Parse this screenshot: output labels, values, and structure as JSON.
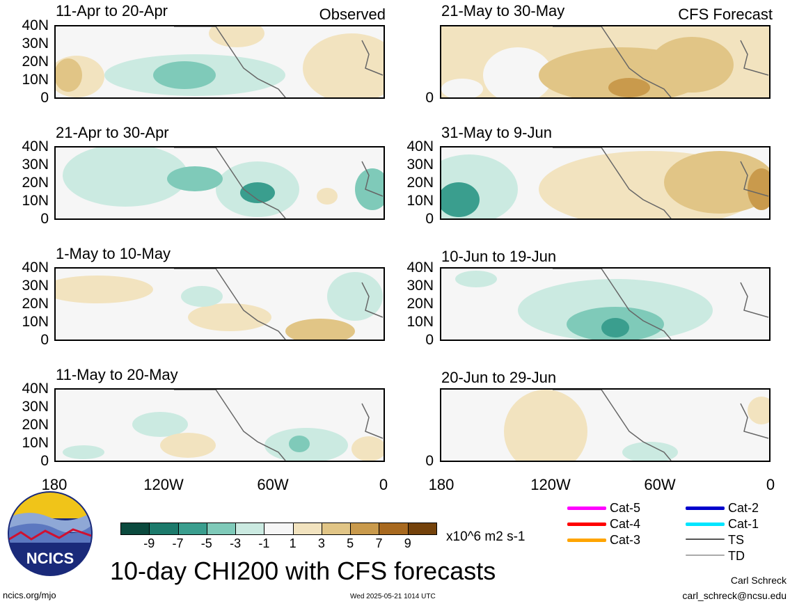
{
  "header": {
    "observed_tag": "Observed",
    "forecast_tag": "CFS Forecast"
  },
  "panels_left": [
    {
      "title": "11-Apr to 20-Apr"
    },
    {
      "title": "21-Apr to 30-Apr"
    },
    {
      "title": "1-May to 10-May"
    },
    {
      "title": "11-May to 20-May"
    }
  ],
  "panels_right": [
    {
      "title": "21-May to 30-May"
    },
    {
      "title": "31-May to 9-Jun"
    },
    {
      "title": "10-Jun to 19-Jun"
    },
    {
      "title": "20-Jun to 29-Jun"
    }
  ],
  "y_axis": [
    "40N",
    "30N",
    "20N",
    "10N",
    "0"
  ],
  "x_axis": [
    "180",
    "120W",
    "60W",
    "0"
  ],
  "colorbar": {
    "colors": [
      "#0b4a3e",
      "#1c7a6b",
      "#3a9e8e",
      "#7fcab9",
      "#cbeae1",
      "#f6f6f6",
      "#f2e3bf",
      "#e1c586",
      "#c99a4c",
      "#a8691f",
      "#74420b"
    ],
    "labels": [
      "-9",
      "-7",
      "-5",
      "-3",
      "-1",
      "1",
      "3",
      "5",
      "7",
      "9"
    ],
    "units": "x10^6 m2 s-1"
  },
  "legend": [
    {
      "label": "Cat-5",
      "color": "#ff00ff"
    },
    {
      "label": "Cat-4",
      "color": "#ff0000"
    },
    {
      "label": "Cat-3",
      "color": "#ffa500"
    },
    {
      "label": "Cat-2",
      "color": "#0000cc"
    },
    {
      "label": "Cat-1",
      "color": "#00e5ff"
    },
    {
      "label": "TS",
      "color": "#555555"
    },
    {
      "label": "TD",
      "color": "#aaaaaa"
    }
  ],
  "footer": {
    "title": "10-day CHI200 with CFS forecasts",
    "logo_text": "NCICS",
    "url": "ncics.org/mjo",
    "timestamp": "Wed 2025-05-21 1014 UTC",
    "author": "Carl Schreck",
    "email": "carl_schreck@ncsu.edu"
  }
}
